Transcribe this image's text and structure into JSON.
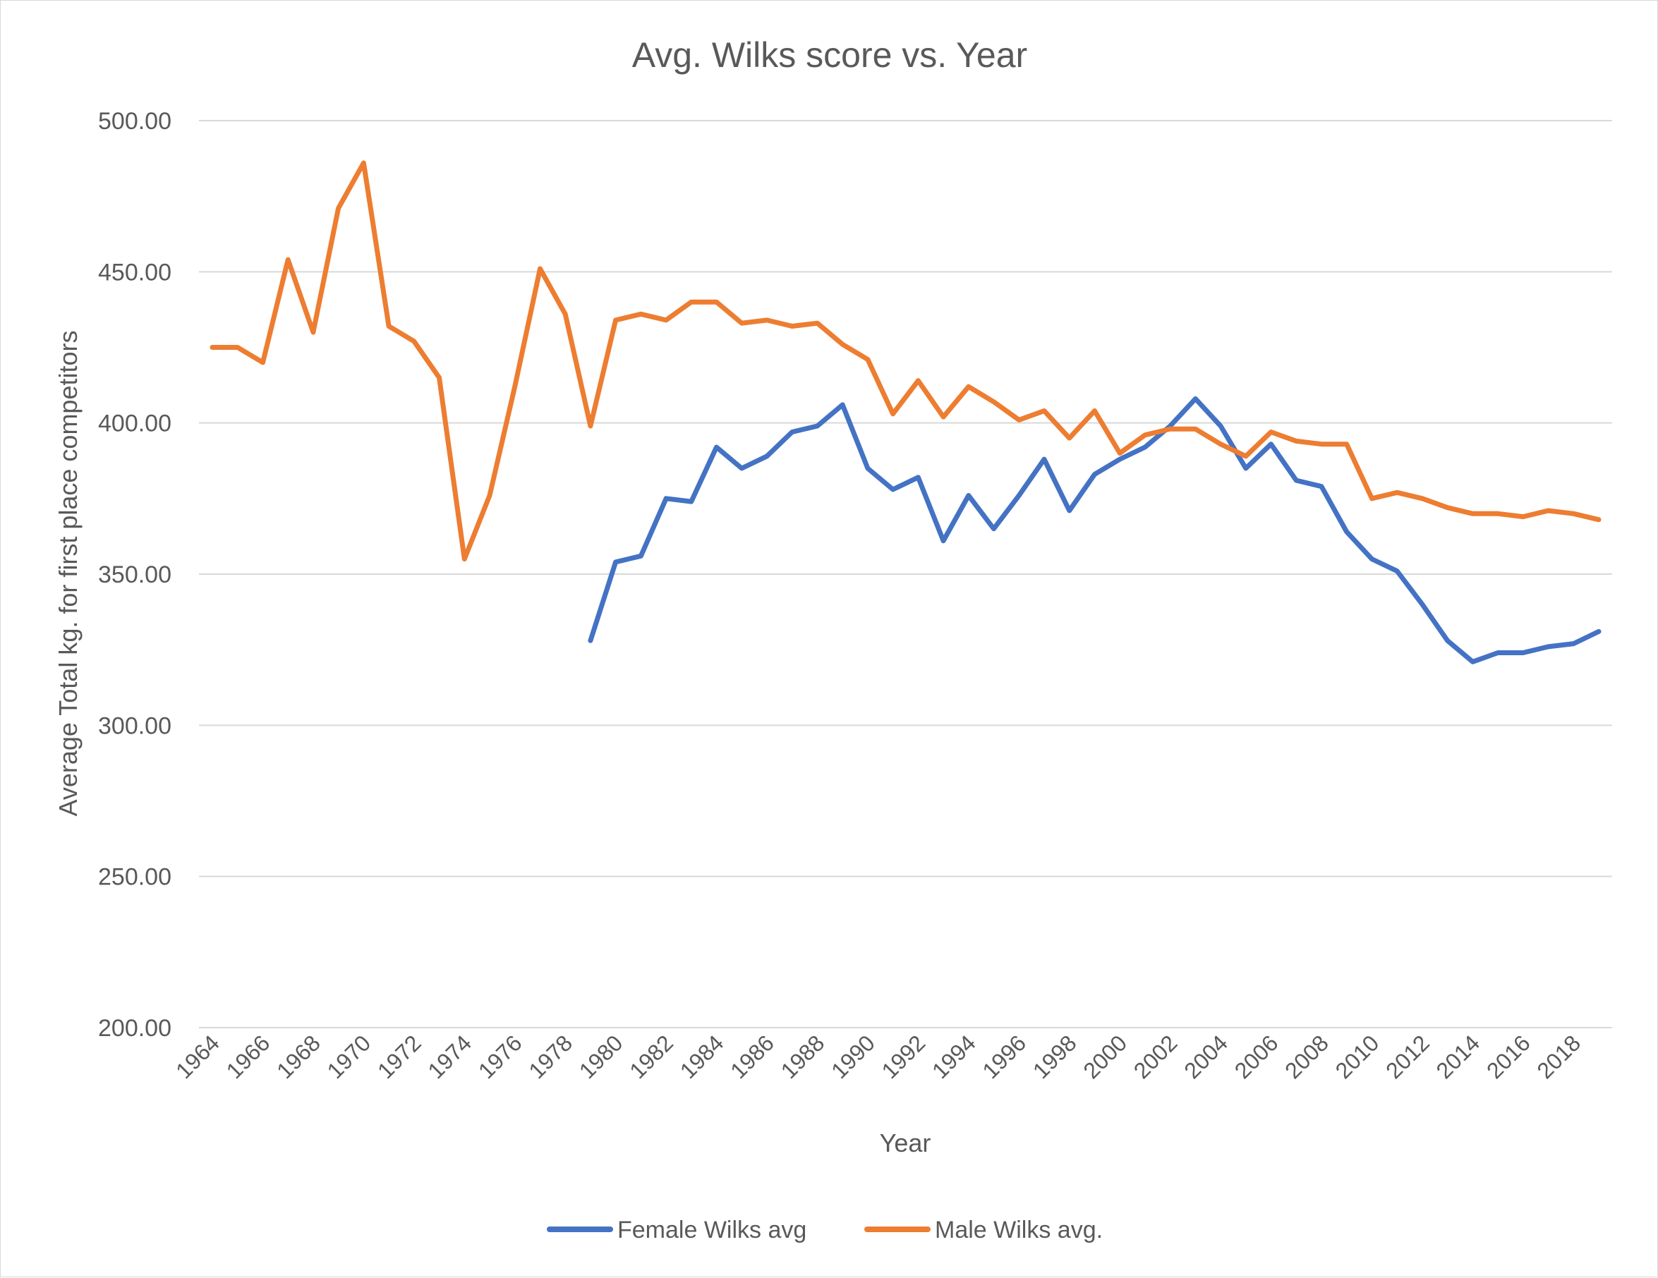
{
  "chart_data": {
    "type": "line",
    "title": "Avg. Wilks score vs. Year",
    "xlabel": "Year",
    "ylabel": "Average Total kg. for first place competitors",
    "ylim": [
      200,
      500
    ],
    "y_ticks": [
      "200.00",
      "250.00",
      "300.00",
      "350.00",
      "400.00",
      "450.00",
      "500.00"
    ],
    "x": [
      1964,
      1965,
      1966,
      1967,
      1968,
      1969,
      1970,
      1971,
      1972,
      1973,
      1974,
      1975,
      1976,
      1977,
      1978,
      1979,
      1980,
      1981,
      1982,
      1983,
      1984,
      1985,
      1986,
      1987,
      1988,
      1989,
      1990,
      1991,
      1992,
      1993,
      1994,
      1995,
      1996,
      1997,
      1998,
      1999,
      2000,
      2001,
      2002,
      2003,
      2004,
      2005,
      2006,
      2007,
      2008,
      2009,
      2010,
      2011,
      2012,
      2013,
      2014,
      2015,
      2016,
      2017,
      2018,
      2019
    ],
    "x_tick_labels": [
      "1964",
      "1966",
      "1968",
      "1970",
      "1972",
      "1974",
      "1976",
      "1978",
      "1980",
      "1982",
      "1984",
      "1986",
      "1988",
      "1990",
      "1992",
      "1994",
      "1996",
      "1998",
      "2000",
      "2002",
      "2004",
      "2006",
      "2008",
      "2010",
      "2012",
      "2014",
      "2016",
      "2018"
    ],
    "grid": true,
    "legend_position": "bottom",
    "series": [
      {
        "name": "Female Wilks avg",
        "color": "#4472C4",
        "values": [
          null,
          null,
          null,
          null,
          null,
          null,
          null,
          null,
          null,
          null,
          null,
          null,
          null,
          null,
          null,
          328,
          354,
          356,
          375,
          374,
          392,
          385,
          389,
          397,
          399,
          406,
          385,
          378,
          382,
          361,
          376,
          365,
          376,
          388,
          371,
          383,
          388,
          392,
          399,
          408,
          399,
          385,
          393,
          381,
          379,
          364,
          355,
          351,
          340,
          328,
          321,
          324,
          324,
          326,
          327,
          331
        ]
      },
      {
        "name": "Male Wilks avg.",
        "color": "#ED7D31",
        "values": [
          425,
          425,
          420,
          454,
          430,
          471,
          486,
          432,
          427,
          415,
          355,
          376,
          412,
          451,
          436,
          399,
          434,
          436,
          434,
          440,
          440,
          433,
          434,
          432,
          433,
          426,
          421,
          403,
          414,
          402,
          412,
          407,
          401,
          404,
          395,
          404,
          390,
          396,
          398,
          398,
          393,
          389,
          397,
          394,
          393,
          393,
          375,
          377,
          375,
          372,
          370,
          370,
          369,
          371,
          370,
          368
        ]
      }
    ]
  }
}
